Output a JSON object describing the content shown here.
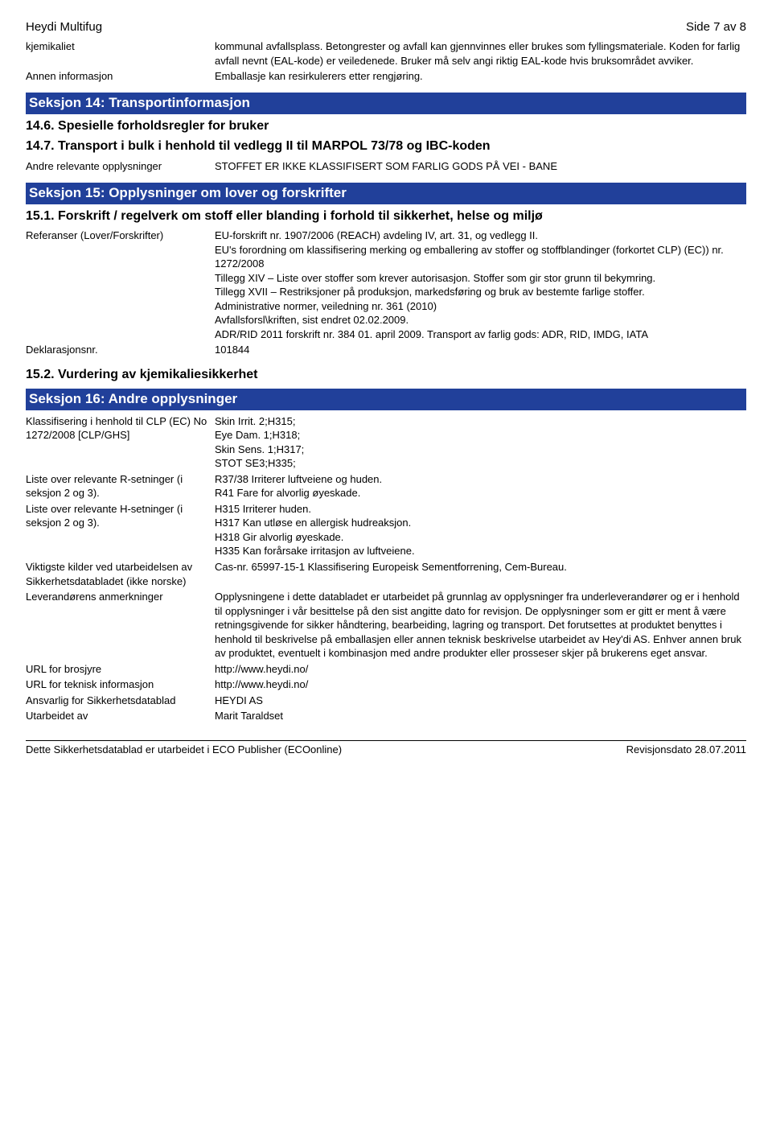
{
  "header": {
    "title": "Heydi Multifug",
    "page": "Side 7 av 8"
  },
  "intro": {
    "rows": [
      {
        "key": "kjemikaliet",
        "val": "kommunal avfallsplass. Betongrester og avfall kan gjennvinnes eller brukes som fyllingsmateriale. Koden for farlig avfall nevnt (EAL-kode) er veiledenede. Bruker må selv angi riktig EAL-kode hvis bruksområdet avviker."
      },
      {
        "key": "Annen informasjon",
        "val": "Emballasje kan resirkulerers etter rengjøring."
      }
    ]
  },
  "s14": {
    "bar": "Seksjon 14: Transportinformasjon",
    "sub1": "14.6. Spesielle forholdsregler for bruker",
    "sub2": "14.7. Transport i bulk i henhold til vedlegg II til MARPOL 73/78 og IBC-koden",
    "rows": [
      {
        "key": "Andre relevante opplysninger",
        "val": "STOFFET ER IKKE KLASSIFISERT SOM FARLIG GODS PÅ VEI - BANE"
      }
    ]
  },
  "s15": {
    "bar": "Seksjon 15: Opplysninger om lover og forskrifter",
    "sub1": "15.1. Forskrift / regelverk om stoff eller blanding i forhold til sikkerhet, helse og miljø",
    "rows1": [
      {
        "key": "Referanser (Lover/Forskrifter)",
        "val": "EU-forskrift nr. 1907/2006 (REACH) avdeling IV, art. 31, og vedlegg II.\nEU's forordning om klassifisering merking og emballering av stoffer og stoffblandinger (forkortet CLP) (EC)) nr. 1272/2008\nTillegg XIV – Liste over stoffer som krever autorisasjon. Stoffer som gir stor grunn til bekymring.\nTillegg XVII – Restriksjoner på produksjon, markedsføring og bruk av bestemte farlige stoffer.\nAdministrative normer, veiledning nr. 361 (2010)\nAvfallsforsl\\kriften, sist endret 02.02.2009.\nADR/RID 2011 forskrift nr. 384 01. april 2009. Transport av farlig gods: ADR, RID, IMDG, IATA"
      },
      {
        "key": "Deklarasjonsnr.",
        "val": "101844"
      }
    ],
    "sub2": "15.2. Vurdering av kjemikaliesikkerhet"
  },
  "s16": {
    "bar": "Seksjon 16: Andre opplysninger",
    "rows": [
      {
        "key": "Klassifisering i henhold til CLP (EC) No 1272/2008 [CLP/GHS]",
        "val": "Skin Irrit. 2;H315;\nEye Dam. 1;H318;\nSkin Sens. 1;H317;\nSTOT SE3;H335;"
      },
      {
        "key": "Liste over relevante R-setninger (i seksjon 2 og 3).",
        "val": "R37/38 Irriterer luftveiene og huden.\nR41 Fare for alvorlig øyeskade."
      },
      {
        "key": "Liste over relevante H-setninger (i seksjon 2 og 3).",
        "val": "H315 Irriterer huden.\nH317 Kan utløse en allergisk hudreaksjon.\nH318 Gir alvorlig øyeskade.\nH335 Kan forårsake irritasjon av luftveiene."
      },
      {
        "key": "Viktigste kilder ved utarbeidelsen av Sikkerhetsdatabladet (ikke norske)",
        "val": "Cas-nr. 65997-15-1 Klassifisering Europeisk Sementforrening, Cem-Bureau."
      },
      {
        "key": "Leverandørens anmerkninger",
        "val": "Opplysningene i dette databladet er utarbeidet på grunnlag av opplysninger fra underleverandører og er i henhold til opplysninger i vår besittelse på den sist angitte dato for revisjon. De opplysninger som er gitt er ment å være retningsgivende for sikker håndtering, bearbeiding, lagring og transport. Det forutsettes at produktet benyttes i henhold til beskrivelse på emballasjen eller annen teknisk beskrivelse utarbeidet av Hey'di AS. Enhver annen bruk av produktet, eventuelt i kombinasjon med andre produkter eller prosseser skjer på brukerens eget ansvar."
      },
      {
        "key": "URL for brosjyre",
        "val": " http://www.heydi.no/"
      },
      {
        "key": "URL for teknisk informasjon",
        "val": " http://www.heydi.no/"
      },
      {
        "key": "Ansvarlig for Sikkerhetsdatablad",
        "val": "HEYDI AS"
      },
      {
        "key": "Utarbeidet av",
        "val": "Marit Taraldset"
      }
    ]
  },
  "footer": {
    "left": "Dette Sikkerhetsdatablad er utarbeidet i ECO Publisher (ECOonline)",
    "right": "Revisjonsdato 28.07.2011"
  }
}
